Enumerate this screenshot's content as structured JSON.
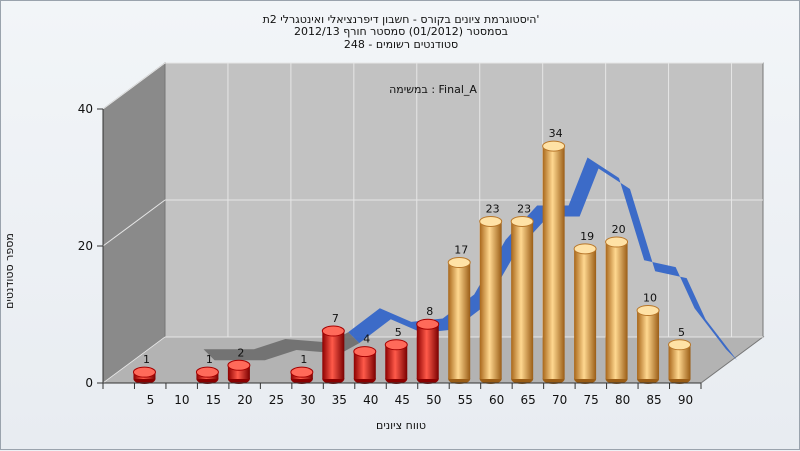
{
  "title_lines": [
    "היסטוגרמת ציונים בקורס - חשבון דיפרנציאלי ואינטגרלי 2ת'",
    "בסמסטר  (01/2012)  סמסטר חורף 2012/13",
    "סטודנטים רשומים - 248"
  ],
  "chart_data": {
    "type": "bar",
    "annotation": "במשימה : Final_A",
    "xlabel": "טווח ציונים",
    "ylabel": "מספר סטודנטים",
    "ylim": [
      0,
      40
    ],
    "y_ticks": [
      0,
      20,
      40
    ],
    "x_ticks": [
      5,
      10,
      15,
      20,
      25,
      30,
      35,
      40,
      45,
      50,
      55,
      60,
      65,
      70,
      75,
      80,
      85,
      90
    ],
    "bars": [
      {
        "x": 5,
        "value": 1,
        "color": "red"
      },
      {
        "x": 15,
        "value": 1,
        "color": "red"
      },
      {
        "x": 20,
        "value": 2,
        "color": "red"
      },
      {
        "x": 30,
        "value": 1,
        "color": "red"
      },
      {
        "x": 35,
        "value": 7,
        "color": "red"
      },
      {
        "x": 40,
        "value": 4,
        "color": "red"
      },
      {
        "x": 45,
        "value": 5,
        "color": "red"
      },
      {
        "x": 50,
        "value": 8,
        "color": "red"
      },
      {
        "x": 55,
        "value": 17,
        "color": "orange"
      },
      {
        "x": 60,
        "value": 23,
        "color": "orange"
      },
      {
        "x": 65,
        "value": 23,
        "color": "orange"
      },
      {
        "x": 70,
        "value": 34,
        "color": "orange"
      },
      {
        "x": 75,
        "value": 19,
        "color": "orange"
      },
      {
        "x": 80,
        "value": 20,
        "color": "orange"
      },
      {
        "x": 85,
        "value": 10,
        "color": "orange"
      },
      {
        "x": 90,
        "value": 5,
        "color": "orange"
      }
    ],
    "trend_line": [
      {
        "x": 12,
        "y": 2
      },
      {
        "x": 20,
        "y": 2
      },
      {
        "x": 25,
        "y": 3.5
      },
      {
        "x": 32,
        "y": 3
      },
      {
        "x": 35,
        "y": 4.5
      },
      {
        "x": 40,
        "y": 8
      },
      {
        "x": 45,
        "y": 6
      },
      {
        "x": 50,
        "y": 6.5
      },
      {
        "x": 55,
        "y": 10
      },
      {
        "x": 60,
        "y": 18
      },
      {
        "x": 65,
        "y": 23
      },
      {
        "x": 70,
        "y": 23
      },
      {
        "x": 73,
        "y": 30
      },
      {
        "x": 78,
        "y": 27
      },
      {
        "x": 82,
        "y": 15
      },
      {
        "x": 87,
        "y": 14
      },
      {
        "x": 90,
        "y": 8
      },
      {
        "x": 95,
        "y": 2
      }
    ],
    "colors": {
      "red": "#d21414",
      "orange": "#e8a13a",
      "trend": "#3566c8",
      "trend_shadow": "#6c6c6c",
      "back_wall": "#c2c2c2",
      "left_wall": "#8a8a8a",
      "floor": "#b3b3b3"
    },
    "grid": true
  }
}
